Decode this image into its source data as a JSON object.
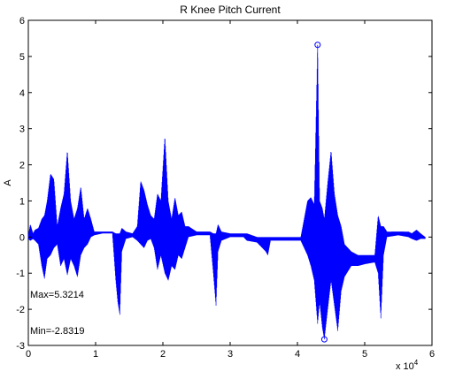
{
  "chart_data": {
    "type": "line",
    "title": "R Knee Pitch Current",
    "xlabel": "",
    "ylabel": "A",
    "x_exponent_label": "x 10",
    "x_exponent_power": "4",
    "xlim": [
      0,
      60000
    ],
    "ylim": [
      -3,
      6
    ],
    "x_ticks": [
      0,
      10000,
      20000,
      30000,
      40000,
      50000,
      60000
    ],
    "x_tick_labels": [
      "0",
      "1",
      "2",
      "3",
      "4",
      "5",
      "6"
    ],
    "y_ticks": [
      -3,
      -2,
      -1,
      0,
      1,
      2,
      3,
      4,
      5,
      6
    ],
    "y_tick_labels": [
      "-3",
      "-2",
      "-1",
      "0",
      "1",
      "2",
      "3",
      "4",
      "5",
      "6"
    ],
    "grid": false,
    "line_color": "#0000ff",
    "annotations": {
      "max_text": "Max=5.3214",
      "min_text": "Min=-2.8319"
    },
    "markers": [
      {
        "x": 43000,
        "y": 5.3214
      },
      {
        "x": 44000,
        "y": -2.8319
      }
    ],
    "series": [
      {
        "envelope": [
          {
            "x": 0,
            "hi": 0.05,
            "lo": -0.05
          },
          {
            "x": 300,
            "hi": 0.35,
            "lo": -0.1
          },
          {
            "x": 700,
            "hi": 0.1,
            "lo": -0.05
          },
          {
            "x": 1000,
            "hi": 0.2,
            "lo": -0.1
          },
          {
            "x": 1500,
            "hi": 0.25,
            "lo": -0.2
          },
          {
            "x": 2000,
            "hi": 0.5,
            "lo": -0.8
          },
          {
            "x": 2400,
            "hi": 0.6,
            "lo": -1.15
          },
          {
            "x": 2800,
            "hi": 1.0,
            "lo": -0.6
          },
          {
            "x": 3300,
            "hi": 1.75,
            "lo": -0.5
          },
          {
            "x": 3800,
            "hi": 1.6,
            "lo": -0.3
          },
          {
            "x": 4300,
            "hi": 0.3,
            "lo": -0.2
          },
          {
            "x": 4800,
            "hi": 0.8,
            "lo": -0.8
          },
          {
            "x": 5300,
            "hi": 1.2,
            "lo": -0.6
          },
          {
            "x": 5800,
            "hi": 2.4,
            "lo": -1.05
          },
          {
            "x": 6300,
            "hi": 1.0,
            "lo": -0.6
          },
          {
            "x": 6800,
            "hi": 0.5,
            "lo": -0.8
          },
          {
            "x": 7300,
            "hi": 0.8,
            "lo": -1.1
          },
          {
            "x": 7800,
            "hi": 1.4,
            "lo": -0.5
          },
          {
            "x": 8300,
            "hi": 0.5,
            "lo": -0.3
          },
          {
            "x": 8800,
            "hi": 0.8,
            "lo": -0.2
          },
          {
            "x": 9300,
            "hi": 0.5,
            "lo": 0.0
          },
          {
            "x": 9800,
            "hi": 0.15,
            "lo": 0.05
          },
          {
            "x": 11000,
            "hi": 0.15,
            "lo": 0.1
          },
          {
            "x": 12500,
            "hi": 0.15,
            "lo": 0.1
          },
          {
            "x": 13000,
            "hi": 0.1,
            "lo": -1.2
          },
          {
            "x": 13300,
            "hi": 0.1,
            "lo": -1.8
          },
          {
            "x": 13600,
            "hi": 0.1,
            "lo": -2.15
          },
          {
            "x": 13900,
            "hi": 0.25,
            "lo": -0.4
          },
          {
            "x": 14500,
            "hi": 0.15,
            "lo": -0.05
          },
          {
            "x": 15500,
            "hi": 0.1,
            "lo": 0.0
          },
          {
            "x": 16200,
            "hi": 0.3,
            "lo": -0.1
          },
          {
            "x": 16700,
            "hi": 1.55,
            "lo": -0.2
          },
          {
            "x": 17200,
            "hi": 1.3,
            "lo": -0.3
          },
          {
            "x": 17700,
            "hi": 0.9,
            "lo": -0.1
          },
          {
            "x": 18200,
            "hi": 0.6,
            "lo": -0.05
          },
          {
            "x": 18700,
            "hi": 0.5,
            "lo": -0.3
          },
          {
            "x": 19200,
            "hi": 1.2,
            "lo": -0.9
          },
          {
            "x": 19700,
            "hi": 1.0,
            "lo": -0.5
          },
          {
            "x": 20300,
            "hi": 2.8,
            "lo": -1.0
          },
          {
            "x": 20800,
            "hi": 1.0,
            "lo": -1.2
          },
          {
            "x": 21300,
            "hi": 0.5,
            "lo": -0.8
          },
          {
            "x": 21800,
            "hi": 1.1,
            "lo": -0.9
          },
          {
            "x": 22300,
            "hi": 0.6,
            "lo": -0.5
          },
          {
            "x": 22800,
            "hi": 0.7,
            "lo": -0.6
          },
          {
            "x": 23300,
            "hi": 0.3,
            "lo": -0.3
          },
          {
            "x": 23800,
            "hi": 0.3,
            "lo": 0.0
          },
          {
            "x": 25000,
            "hi": 0.15,
            "lo": 0.05
          },
          {
            "x": 27000,
            "hi": 0.15,
            "lo": 0.05
          },
          {
            "x": 27500,
            "hi": 0.1,
            "lo": -1.0
          },
          {
            "x": 27900,
            "hi": 0.1,
            "lo": -1.9
          },
          {
            "x": 28200,
            "hi": 0.35,
            "lo": -0.4
          },
          {
            "x": 28700,
            "hi": 0.15,
            "lo": -0.1
          },
          {
            "x": 30000,
            "hi": 0.1,
            "lo": 0.0
          },
          {
            "x": 32000,
            "hi": 0.1,
            "lo": 0.0
          },
          {
            "x": 32500,
            "hi": 0.1,
            "lo": -0.1
          },
          {
            "x": 34000,
            "hi": 0.0,
            "lo": -0.15
          },
          {
            "x": 35300,
            "hi": 0.0,
            "lo": -0.4
          },
          {
            "x": 35600,
            "hi": 0.0,
            "lo": -0.5
          },
          {
            "x": 36000,
            "hi": 0.0,
            "lo": -0.1
          },
          {
            "x": 38500,
            "hi": 0.0,
            "lo": -0.1
          },
          {
            "x": 40500,
            "hi": 0.0,
            "lo": -0.1
          },
          {
            "x": 41000,
            "hi": 0.5,
            "lo": -0.3
          },
          {
            "x": 41500,
            "hi": 1.0,
            "lo": -0.5
          },
          {
            "x": 42000,
            "hi": 1.1,
            "lo": -0.8
          },
          {
            "x": 42500,
            "hi": 0.9,
            "lo": -1.2
          },
          {
            "x": 43000,
            "hi": 5.3214,
            "lo": -2.4
          },
          {
            "x": 43300,
            "hi": 1.0,
            "lo": -1.8
          },
          {
            "x": 43700,
            "hi": 0.8,
            "lo": -2.5
          },
          {
            "x": 44000,
            "hi": 0.5,
            "lo": -2.8319
          },
          {
            "x": 44500,
            "hi": 1.5,
            "lo": -2.0
          },
          {
            "x": 45000,
            "hi": 2.4,
            "lo": -1.2
          },
          {
            "x": 45500,
            "hi": 1.2,
            "lo": -1.9
          },
          {
            "x": 46000,
            "hi": 0.6,
            "lo": -2.6
          },
          {
            "x": 46500,
            "hi": 0.3,
            "lo": -1.5
          },
          {
            "x": 47000,
            "hi": -0.2,
            "lo": -1.1
          },
          {
            "x": 48000,
            "hi": -0.4,
            "lo": -0.8
          },
          {
            "x": 49000,
            "hi": -0.5,
            "lo": -0.8
          },
          {
            "x": 50000,
            "hi": -0.5,
            "lo": -0.75
          },
          {
            "x": 51500,
            "hi": -0.5,
            "lo": -0.7
          },
          {
            "x": 52000,
            "hi": 0.6,
            "lo": -1.0
          },
          {
            "x": 52400,
            "hi": 0.3,
            "lo": -2.25
          },
          {
            "x": 52800,
            "hi": 0.3,
            "lo": -0.5
          },
          {
            "x": 53300,
            "hi": 0.15,
            "lo": 0.0
          },
          {
            "x": 55000,
            "hi": 0.15,
            "lo": 0.05
          },
          {
            "x": 56500,
            "hi": 0.15,
            "lo": 0.0
          },
          {
            "x": 57000,
            "hi": 0.1,
            "lo": -0.05
          },
          {
            "x": 57700,
            "hi": 0.2,
            "lo": -0.1
          },
          {
            "x": 58300,
            "hi": 0.1,
            "lo": -0.05
          },
          {
            "x": 59000,
            "hi": 0.0,
            "lo": -0.05
          }
        ]
      }
    ]
  }
}
